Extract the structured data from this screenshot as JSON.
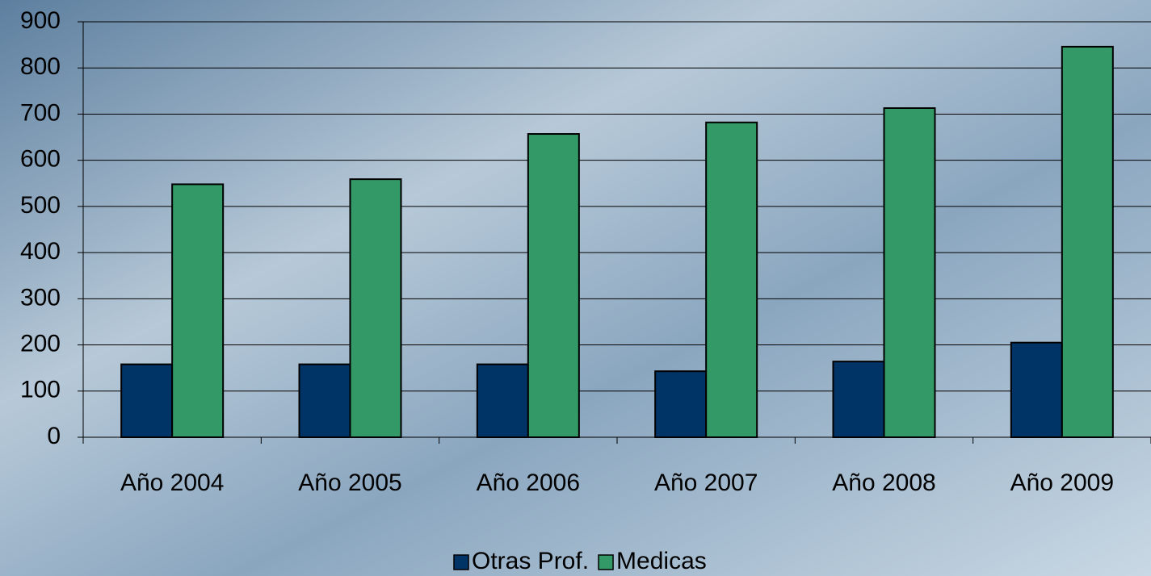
{
  "chart_data": {
    "type": "bar",
    "categories": [
      "Año 2004",
      "Año 2005",
      "Año 2006",
      "Año 2007",
      "Año 2008",
      "Año 2009"
    ],
    "series": [
      {
        "name": "Otras Prof.",
        "color": "#003366",
        "values": [
          158,
          158,
          158,
          143,
          164,
          205
        ]
      },
      {
        "name": "Medicas",
        "color": "#339966",
        "values": [
          548,
          559,
          657,
          682,
          713,
          846
        ]
      }
    ],
    "ylim": [
      0,
      900
    ],
    "yticks": [
      0,
      100,
      200,
      300,
      400,
      500,
      600,
      700,
      800,
      900
    ],
    "grid": true,
    "legend": "bottom"
  }
}
